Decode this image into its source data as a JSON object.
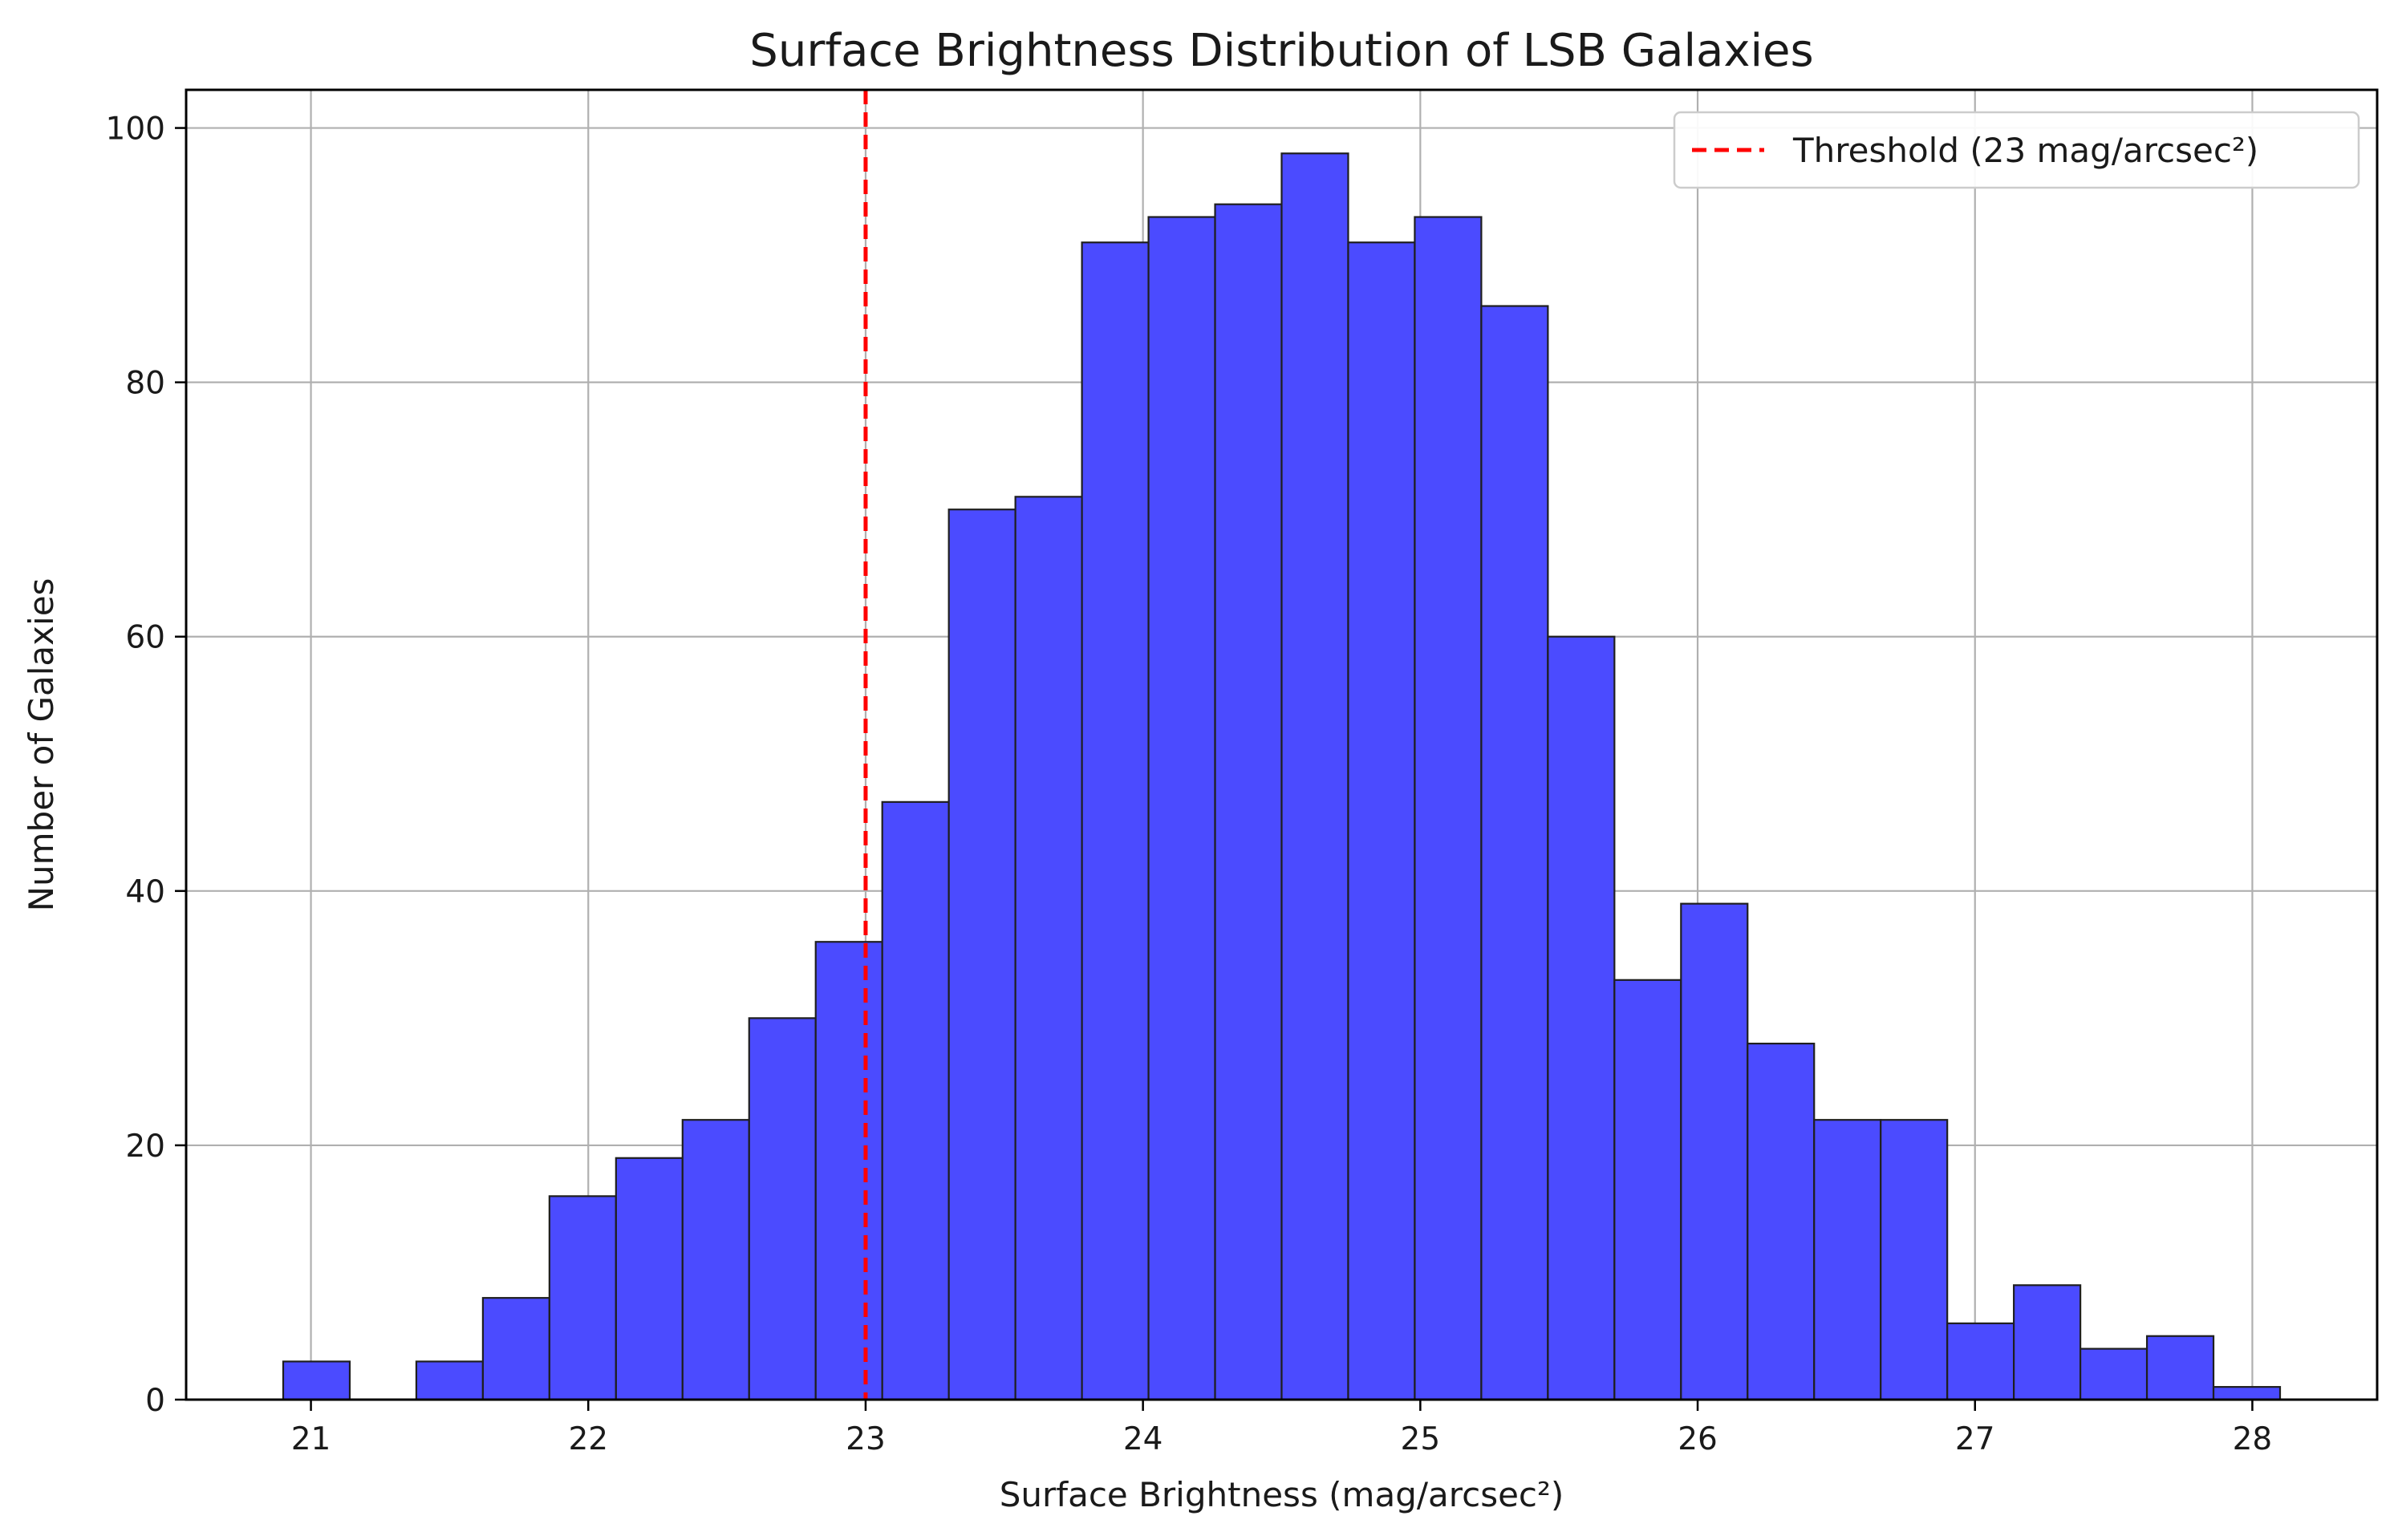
{
  "chart_data": {
    "type": "bar",
    "title": "Surface Brightness Distribution of LSB Galaxies",
    "xlabel": "Surface Brightness (mag/arcsec²)",
    "ylabel": "Number of Galaxies",
    "xlim": [
      20.55,
      28.45
    ],
    "ylim": [
      0,
      103
    ],
    "grid": true,
    "x_ticks": [
      21,
      22,
      23,
      24,
      25,
      26,
      27,
      28
    ],
    "x_tick_labels": [
      "21",
      "22",
      "23",
      "24",
      "25",
      "26",
      "27",
      "28"
    ],
    "y_ticks": [
      0,
      20,
      40,
      60,
      80,
      100
    ],
    "y_tick_labels": [
      "0",
      "20",
      "40",
      "60",
      "80",
      "100"
    ],
    "bins": {
      "start": 20.9,
      "end": 28.1,
      "width": 0.24
    },
    "values": [
      3,
      0,
      3,
      8,
      16,
      19,
      22,
      30,
      36,
      47,
      70,
      71,
      91,
      93,
      94,
      98,
      91,
      93,
      86,
      60,
      33,
      39,
      28,
      22,
      22,
      6,
      9,
      4,
      5,
      1
    ],
    "bar_color": "#4b4bff",
    "bar_edge_color": "#1f1f1f",
    "threshold": {
      "x": 23,
      "label": "Threshold (23 mag/arcsec²)",
      "color": "#ff0000",
      "style": "dashed"
    },
    "legend": {
      "placement": "top-right",
      "entries": [
        "Threshold (23 mag/arcsec²)"
      ]
    }
  }
}
